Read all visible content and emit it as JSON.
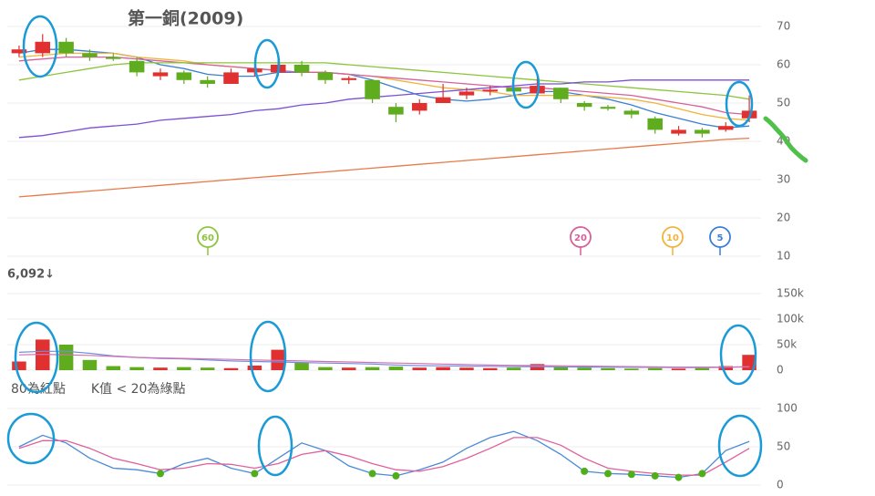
{
  "chart_data": [
    {
      "type": "candlestick",
      "title": "第一銅(2009)",
      "categories": [
        null,
        null,
        null,
        null,
        null,
        null,
        null,
        null,
        null,
        null,
        null,
        null,
        null,
        null,
        null,
        null,
        null,
        null,
        null,
        null,
        null,
        null,
        null,
        null,
        null,
        null,
        null,
        null,
        null,
        null,
        null,
        null
      ],
      "open": [
        63,
        63,
        66,
        63,
        62,
        61,
        57,
        58,
        56,
        55,
        58,
        58,
        60,
        58,
        56,
        56,
        49,
        48,
        50,
        52,
        53,
        54,
        52.5,
        54,
        50,
        49,
        48,
        46,
        42,
        43,
        43,
        46
      ],
      "high": [
        65,
        68,
        67,
        64,
        63,
        62,
        59,
        58.5,
        57,
        59,
        59.5,
        63,
        61,
        58.5,
        57,
        56,
        50,
        51,
        55,
        54,
        54.5,
        55,
        57,
        54,
        50.5,
        49.5,
        48.5,
        46.5,
        44,
        43.5,
        45,
        52
      ],
      "low": [
        62,
        62,
        62,
        61,
        61,
        57,
        56,
        55,
        54,
        55,
        57,
        57,
        57,
        55,
        55,
        50,
        45,
        47,
        50,
        51,
        52,
        52,
        52,
        50,
        48,
        48,
        46,
        42,
        41.5,
        41,
        42.5,
        45
      ],
      "close": [
        64,
        66,
        63,
        62,
        61.5,
        58,
        58,
        56,
        55,
        58,
        59,
        60,
        58,
        56,
        56.5,
        51,
        47,
        50,
        51.5,
        53,
        53.5,
        53,
        54.5,
        51,
        49,
        48.5,
        47,
        43,
        43,
        42,
        44,
        48
      ],
      "up_color": "#e0302f",
      "down_color": "#5fad1f",
      "series": [
        {
          "name": "5",
          "color": "#3a7fd5",
          "values": [
            63,
            64,
            64,
            63.5,
            63,
            62,
            60,
            59,
            57.5,
            57,
            57,
            58,
            58,
            58,
            57.5,
            56,
            54,
            52,
            51,
            50.5,
            51,
            52,
            53,
            53,
            52,
            51,
            49.5,
            47.5,
            46,
            44.5,
            43.5,
            44
          ]
        },
        {
          "name": "10",
          "color": "#f0b43c",
          "values": [
            62,
            62.5,
            63,
            63,
            63,
            62,
            61.5,
            61,
            60,
            59.5,
            59,
            58.5,
            58,
            58,
            57.5,
            57,
            56,
            55,
            54,
            53.5,
            53,
            52,
            52,
            52,
            52,
            51.5,
            51,
            50,
            48.5,
            47,
            46,
            45.5
          ]
        },
        {
          "name": "20",
          "color": "#d6609a",
          "values": [
            61,
            61.5,
            62,
            62,
            62,
            61.5,
            61,
            60.5,
            60,
            59.5,
            59,
            58.5,
            58,
            58,
            57.5,
            57,
            56.5,
            56,
            55.5,
            55,
            54.5,
            54,
            54,
            53.5,
            53,
            52.5,
            52,
            51,
            50,
            49,
            47.5,
            47
          ]
        },
        {
          "name": "60",
          "color": "#8cc43c",
          "values": [
            56,
            57,
            58,
            59,
            60,
            60.5,
            60.5,
            60.5,
            60.5,
            60.5,
            60.5,
            60.5,
            60.5,
            60.5,
            60,
            59.5,
            59,
            58.5,
            58,
            57.5,
            57,
            56.5,
            56,
            55.5,
            55,
            54.5,
            54,
            53.5,
            53,
            52.5,
            52,
            51
          ]
        },
        {
          "color": "#7c4fd6",
          "values": [
            41,
            41.5,
            42.5,
            43.5,
            44,
            44.5,
            45.5,
            46,
            46.5,
            47,
            48,
            48.5,
            49.5,
            50,
            51,
            51.5,
            52,
            52.5,
            53,
            53.5,
            54,
            54.5,
            55,
            55,
            55.5,
            55.5,
            56,
            56,
            56,
            56,
            56,
            56
          ]
        },
        {
          "color": "#e87a4a",
          "values": [
            25.5,
            26,
            26.5,
            27,
            27.5,
            28,
            28.5,
            29,
            29.5,
            30,
            30.5,
            31,
            31.5,
            32,
            32.5,
            33,
            33.5,
            34,
            34.5,
            35,
            35.5,
            36,
            36.5,
            37,
            37.5,
            38,
            38.5,
            39,
            39.5,
            40,
            40.5,
            40.8
          ]
        }
      ],
      "ylim": [
        10,
        70
      ],
      "yticks": [
        10,
        20,
        30,
        40,
        50,
        60,
        70
      ],
      "grid": true
    },
    {
      "type": "bar",
      "annotation": "6,092↓",
      "categories": [
        null,
        null,
        null,
        null,
        null,
        null,
        null,
        null,
        null,
        null,
        null,
        null,
        null,
        null,
        null,
        null,
        null,
        null,
        null,
        null,
        null,
        null,
        null,
        null,
        null,
        null,
        null,
        null,
        null,
        null,
        null,
        null
      ],
      "values": [
        17000,
        60000,
        50000,
        20000,
        8000,
        6000,
        5000,
        6000,
        5000,
        4000,
        9000,
        40000,
        15000,
        6000,
        5000,
        6000,
        7000,
        5000,
        6000,
        5000,
        4000,
        5000,
        12000,
        6000,
        5000,
        4000,
        3000,
        4000,
        3000,
        4000,
        8000,
        30000
      ],
      "series": [
        {
          "color": "#6f8fe0",
          "values": [
            35000,
            37000,
            37000,
            33000,
            28000,
            25000,
            23000,
            22000,
            20000,
            18000,
            17000,
            16000,
            15000,
            14000,
            13000,
            12000,
            10000,
            9000,
            8500,
            8000,
            7500,
            7000,
            7000,
            6500,
            6000,
            6000,
            5500,
            5500,
            5000,
            5000,
            5500,
            7000
          ]
        },
        {
          "color": "#d670b0",
          "values": [
            30000,
            31000,
            30000,
            29000,
            27000,
            25000,
            24000,
            23000,
            22000,
            21000,
            20000,
            19000,
            18000,
            17000,
            16000,
            15000,
            14000,
            13000,
            12000,
            11000,
            10000,
            9500,
            9000,
            8500,
            8000,
            7500,
            7000,
            6500,
            6000,
            6000,
            6000,
            6500
          ]
        }
      ],
      "ylim": [
        0,
        150000
      ],
      "yticks": [
        0,
        {
          "value": 50000,
          "label": "50k"
        },
        {
          "value": 100000,
          "label": "100k"
        },
        {
          "value": 150000,
          "label": "150k"
        }
      ],
      "grid": true
    },
    {
      "type": "line",
      "annotation": "80為紅點　　K值 < 20為綠點",
      "dot_rules": {
        "red_above": 80,
        "green_below": 20,
        "red": "#e0302f",
        "green": "#4fae1a"
      },
      "categories": [
        null,
        null,
        null,
        null,
        null,
        null,
        null,
        null,
        null,
        null,
        null,
        null,
        null,
        null,
        null,
        null,
        null,
        null,
        null,
        null,
        null,
        null,
        null,
        null,
        null,
        null,
        null,
        null,
        null,
        null,
        null,
        null
      ],
      "series": [
        {
          "color": "#4a8ad8",
          "values": [
            50,
            65,
            55,
            35,
            22,
            20,
            15,
            28,
            35,
            22,
            15,
            35,
            55,
            45,
            25,
            15,
            12,
            20,
            30,
            48,
            62,
            70,
            58,
            40,
            18,
            15,
            14,
            12,
            10,
            15,
            45,
            57
          ]
        },
        {
          "color": "#e0609a",
          "values": [
            48,
            58,
            58,
            48,
            35,
            28,
            20,
            22,
            28,
            27,
            22,
            28,
            40,
            45,
            38,
            28,
            20,
            18,
            24,
            35,
            48,
            62,
            62,
            52,
            35,
            22,
            18,
            15,
            13,
            13,
            30,
            48
          ]
        }
      ],
      "ylim": [
        0,
        100
      ],
      "yticks": [
        0,
        50,
        100
      ],
      "grid": true
    }
  ]
}
